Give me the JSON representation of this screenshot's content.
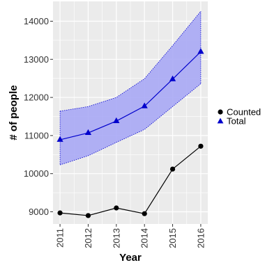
{
  "chart_data": {
    "type": "line",
    "title": "",
    "xlabel": "Year",
    "ylabel": "# of people",
    "x": [
      2011,
      2012,
      2013,
      2014,
      2015,
      2016
    ],
    "x_tick_labels": [
      "2011",
      "2012",
      "2013",
      "2014",
      "2015",
      "2016"
    ],
    "y_ticks": [
      9000,
      10000,
      11000,
      12000,
      13000,
      14000
    ],
    "y_tick_labels": [
      "9000",
      "10000",
      "11000",
      "12000",
      "13000",
      "14000"
    ],
    "xlim": [
      2010.75,
      2016.25
    ],
    "ylim": [
      8680,
      14520
    ],
    "grid": true,
    "legend_position": "right",
    "series": [
      {
        "name": "Counted",
        "marker": "circle",
        "color": "#000000",
        "values": [
          8970,
          8900,
          9100,
          8950,
          10120,
          10720
        ]
      },
      {
        "name": "Total",
        "marker": "triangle",
        "color": "#0000cc",
        "values": [
          10890,
          11070,
          11380,
          11770,
          12480,
          13200
        ],
        "band_lower": [
          10230,
          10470,
          10820,
          11160,
          11760,
          12360
        ],
        "band_upper": [
          11640,
          11760,
          12000,
          12490,
          13360,
          14260
        ],
        "band_color": "#a8a8f5"
      }
    ],
    "panel_background": "#ebebeb",
    "grid_color": "#ffffff"
  }
}
